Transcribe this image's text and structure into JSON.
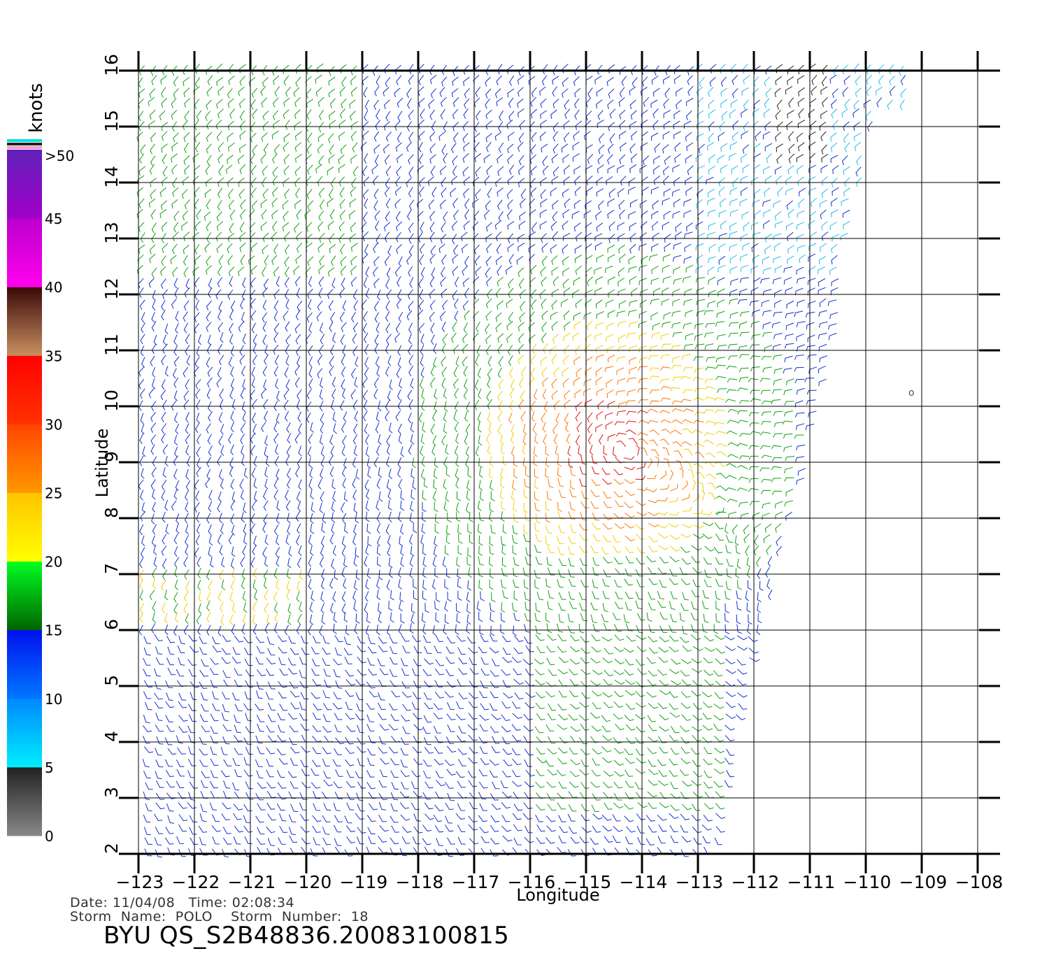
{
  "colorbar": {
    "unit_label": "knots",
    "tick_labels": [
      ">50",
      "45",
      "40",
      "35",
      "30",
      "25",
      "20",
      "15",
      "10",
      "5",
      "0"
    ],
    "segments": [
      {
        "from": 0,
        "to": 5,
        "colors": [
          "#888888",
          "#222222"
        ]
      },
      {
        "from": 5,
        "to": 10,
        "colors": [
          "#00eeff",
          "#0088ff"
        ]
      },
      {
        "from": 10,
        "to": 15,
        "colors": [
          "#0077ff",
          "#0010ee"
        ]
      },
      {
        "from": 15,
        "to": 20,
        "colors": [
          "#006400",
          "#00ff22"
        ]
      },
      {
        "from": 20,
        "to": 25,
        "colors": [
          "#ffff00",
          "#ffc400"
        ]
      },
      {
        "from": 25,
        "to": 30,
        "colors": [
          "#ff9800",
          "#ff4400"
        ]
      },
      {
        "from": 30,
        "to": 35,
        "colors": [
          "#ff3300",
          "#ff0000"
        ]
      },
      {
        "from": 35,
        "to": 40,
        "colors": [
          "#c89060",
          "#3a0808"
        ]
      },
      {
        "from": 40,
        "to": 45,
        "colors": [
          "#ff00ee",
          "#bb00cc"
        ]
      },
      {
        "from": 45,
        "to": 50,
        "colors": [
          "#a000c8",
          "#6020b8"
        ]
      }
    ],
    "top_stripe_colors": [
      "#00e0e0",
      "#222222",
      "#ff99cc"
    ]
  },
  "axes": {
    "xlabel": "Longitude",
    "ylabel": "Latitude",
    "x_ticks": [
      -123,
      -122,
      -121,
      -120,
      -119,
      -118,
      -117,
      -116,
      -115,
      -114,
      -113,
      -112,
      -111,
      -110,
      -109,
      -108
    ],
    "y_ticks": [
      2,
      3,
      4,
      5,
      6,
      7,
      8,
      9,
      10,
      11,
      12,
      13,
      14,
      15,
      16
    ],
    "xlim": [
      -123,
      -108
    ],
    "ylim": [
      2,
      16
    ],
    "grid": true
  },
  "footer": {
    "line1": "Date: 11/04/08   Time: 02:08:34",
    "line2": "Storm  Name:  POLO    Storm  Number:  18",
    "product_id": "BYU  QS_S2B48836.20083100815"
  },
  "wind_field": {
    "description_colors": {
      "0-5": "#222222",
      "5-10": "#22bbee",
      "10-15": "#1030d0",
      "15-20": "#10a010",
      "20-25": "#f0d000",
      "25-30": "#ff7700",
      "30-35": "#e01010"
    }
  }
}
